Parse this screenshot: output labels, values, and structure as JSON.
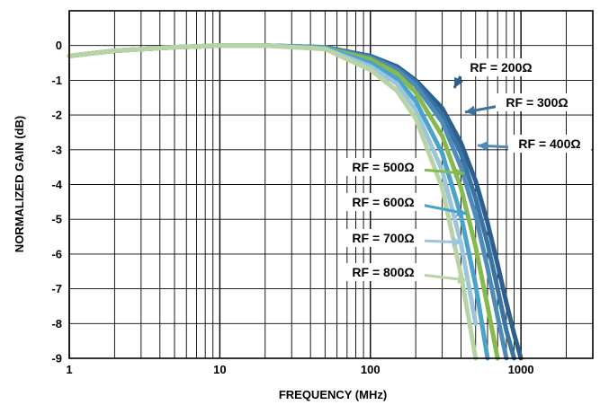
{
  "chart_data": {
    "type": "line",
    "title": "",
    "xlabel": "FREQUENCY (MHz)",
    "ylabel": "NORMALIZED GAIN (dB)",
    "x_scale": "log",
    "xlim": [
      1,
      3000
    ],
    "ylim": [
      -9,
      1
    ],
    "grid": true,
    "legend": "none",
    "x_tick_labels": [
      {
        "value": 1,
        "label": "1"
      },
      {
        "value": 10,
        "label": "10"
      },
      {
        "value": 100,
        "label": "100"
      },
      {
        "value": 1000,
        "label": "1000"
      }
    ],
    "y_tick_labels": [
      {
        "value": 0,
        "label": "0"
      },
      {
        "value": -1,
        "label": "-1"
      },
      {
        "value": -2,
        "label": "-2"
      },
      {
        "value": -3,
        "label": "-3"
      },
      {
        "value": -4,
        "label": "-4"
      },
      {
        "value": -5,
        "label": "-5"
      },
      {
        "value": -6,
        "label": "-6"
      },
      {
        "value": -7,
        "label": "-7"
      },
      {
        "value": -8,
        "label": "-8"
      },
      {
        "value": -9,
        "label": "-9"
      }
    ],
    "x": [
      1,
      2,
      5,
      10,
      20,
      50,
      100,
      150,
      200,
      300,
      400,
      500,
      600,
      700,
      800,
      900,
      1000
    ],
    "series": [
      {
        "name": "RF = 200Ω",
        "color": "#2d5f8e",
        "values": [
          -0.3,
          -0.15,
          -0.05,
          0,
          0,
          -0.05,
          -0.3,
          -0.6,
          -1.0,
          -1.8,
          -2.8,
          -3.9,
          -5.1,
          -6.3,
          -7.4,
          -8.3,
          -9.0
        ]
      },
      {
        "name": "RF = 300Ω",
        "color": "#3a74a4",
        "values": [
          -0.3,
          -0.15,
          -0.05,
          0,
          0,
          -0.05,
          -0.32,
          -0.65,
          -1.05,
          -2.0,
          -3.1,
          -4.4,
          -5.7,
          -7.0,
          -8.2,
          -9.0,
          null
        ]
      },
      {
        "name": "RF = 400Ω",
        "color": "#4d8cb8",
        "values": [
          -0.3,
          -0.15,
          -0.05,
          0,
          0,
          -0.06,
          -0.35,
          -0.7,
          -1.15,
          -2.2,
          -3.5,
          -4.9,
          -6.4,
          -7.8,
          -9.0,
          null,
          null
        ]
      },
      {
        "name": "RF = 500Ω",
        "color": "#86b94e",
        "values": [
          -0.3,
          -0.15,
          -0.05,
          0,
          0,
          -0.07,
          -0.4,
          -0.8,
          -1.35,
          -2.6,
          -4.1,
          -5.8,
          -7.5,
          -9.0,
          null,
          null,
          null
        ]
      },
      {
        "name": "RF = 600Ω",
        "color": "#4ba3c9",
        "values": [
          -0.3,
          -0.15,
          -0.05,
          0,
          0,
          -0.08,
          -0.5,
          -0.95,
          -1.6,
          -3.1,
          -4.9,
          -6.9,
          -9.0,
          null,
          null,
          null,
          null
        ]
      },
      {
        "name": "RF = 700Ω",
        "color": "#9cc5dd",
        "values": [
          -0.3,
          -0.15,
          -0.05,
          0,
          0,
          -0.09,
          -0.6,
          -1.1,
          -1.85,
          -3.6,
          -5.7,
          -8.0,
          null,
          null,
          null,
          null,
          null
        ]
      },
      {
        "name": "RF = 800Ω",
        "color": "#b8d4a6",
        "values": [
          -0.3,
          -0.15,
          -0.05,
          0,
          0,
          -0.1,
          -0.7,
          -1.3,
          -2.1,
          -4.1,
          -6.6,
          -9.0,
          null,
          null,
          null,
          null,
          null
        ]
      }
    ],
    "annotations": [
      {
        "text": "RF = 200Ω",
        "color": "#2d5f8e",
        "x": 240,
        "y": -1.1
      },
      {
        "text": "RF = 300Ω",
        "color": "#3a74a4",
        "x": 330,
        "y": -1.8
      },
      {
        "text": "RF = 400Ω",
        "color": "#4d8cb8",
        "x": 430,
        "y": -2.9
      },
      {
        "text": "RF = 500Ω",
        "color": "#86b94e",
        "x": 430,
        "y": -3.6
      },
      {
        "text": "RF = 600Ω",
        "color": "#4ba3c9",
        "x": 440,
        "y": -4.8
      },
      {
        "text": "RF = 700Ω",
        "color": "#9cc5dd",
        "x": 430,
        "y": -5.7
      },
      {
        "text": "RF = 800Ω",
        "color": "#b8d4a6",
        "x": 430,
        "y": -6.7
      }
    ]
  }
}
